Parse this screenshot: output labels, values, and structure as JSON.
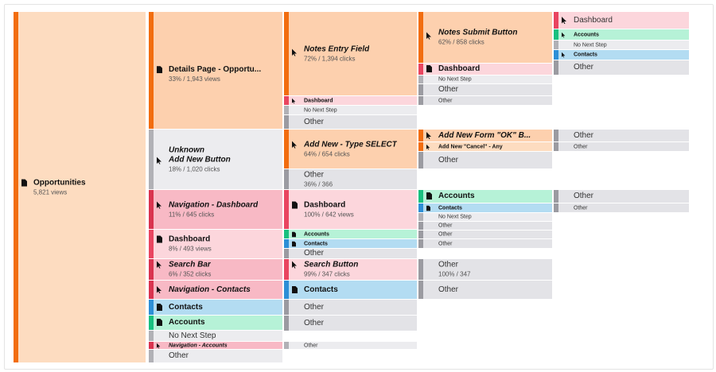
{
  "flow": {
    "root": {
      "label": "Opportunities",
      "sub": "5,821 views"
    },
    "col2": [
      {
        "label": "Details Page - Opportu...",
        "sub": "33% / 1,943 views"
      },
      {
        "label": "Unknown",
        "label2": "Add New Button",
        "sub": "18% / 1,020 clicks"
      },
      {
        "label": "Navigation - Dashboard",
        "sub": "11% / 645 clicks"
      },
      {
        "label": "Dashboard",
        "sub": "8% / 493 views"
      },
      {
        "label": "Search Bar",
        "sub": "6% / 352 clicks"
      },
      {
        "label": "Navigation - Contacts"
      },
      {
        "label": "Contacts"
      },
      {
        "label": "Accounts"
      },
      {
        "label": "No Next Step"
      },
      {
        "label": "Navigation - Accounts"
      },
      {
        "label": "Other"
      }
    ],
    "col3": [
      {
        "label": "Notes Entry Field",
        "sub": "72% / 1,394 clicks"
      },
      {
        "label": "Dashboard"
      },
      {
        "label": "No Next Step"
      },
      {
        "label": "Other"
      },
      {
        "label": "Add New - Type SELECT",
        "sub": "64% / 654 clicks"
      },
      {
        "label": "Other",
        "sub": "36% / 366"
      },
      {
        "label": "Dashboard",
        "sub": "100% / 642 views"
      },
      {
        "label": "Accounts"
      },
      {
        "label": "Contacts"
      },
      {
        "label": "Other"
      },
      {
        "label": "Search Button",
        "sub": "99% / 347 clicks"
      },
      {
        "label": "Contacts"
      },
      {
        "label": "Other"
      },
      {
        "label": "Other"
      },
      {
        "label": "Other"
      }
    ],
    "col4": [
      {
        "label": "Notes Submit Button",
        "sub": "62% / 858 clicks"
      },
      {
        "label": "Dashboard"
      },
      {
        "label": "No Next Step"
      },
      {
        "label": "Other"
      },
      {
        "label": "Other"
      },
      {
        "label": "Add New Form \"OK\" B..."
      },
      {
        "label": "Add New \"Cancel\" - Any"
      },
      {
        "label": "Other"
      },
      {
        "label": "Accounts"
      },
      {
        "label": "Contacts"
      },
      {
        "label": "No Next Step"
      },
      {
        "label": "Other"
      },
      {
        "label": "Other"
      },
      {
        "label": "Other"
      },
      {
        "label": "Other",
        "sub": "100% / 347"
      },
      {
        "label": "Other"
      }
    ],
    "col5": [
      {
        "label": "Dashboard"
      },
      {
        "label": "Accounts"
      },
      {
        "label": "No Next Step"
      },
      {
        "label": "Contacts"
      },
      {
        "label": "Other"
      },
      {
        "label": "Other"
      },
      {
        "label": "Other"
      },
      {
        "label": "Other"
      },
      {
        "label": "Other"
      }
    ]
  },
  "icon": "document-icon"
}
